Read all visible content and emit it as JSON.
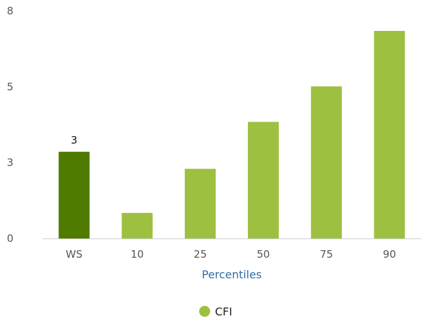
{
  "chart_data": {
    "type": "bar",
    "categories": [
      "WS",
      "10",
      "25",
      "50",
      "75",
      "90"
    ],
    "series": [
      {
        "name": "CFI",
        "values": [
          3.05,
          0.9,
          2.45,
          4.1,
          5.35,
          7.3
        ],
        "color": "#9ec041",
        "highlight_index": 0,
        "highlight_color": "#4e7a00"
      }
    ],
    "data_labels": [
      {
        "category": "WS",
        "text": "3"
      }
    ],
    "xlabel": "Percentiles",
    "ylabel": "",
    "y_ticks": [
      {
        "value": 0,
        "label": "0"
      },
      {
        "value": 2.67,
        "label": "3"
      },
      {
        "value": 5.33,
        "label": "5"
      },
      {
        "value": 8,
        "label": "8"
      }
    ],
    "ylim": [
      0,
      8
    ],
    "grid": false,
    "legend": {
      "placement": "bottom-center",
      "items": [
        {
          "label": "CFI",
          "color": "#9ec041"
        }
      ]
    }
  }
}
